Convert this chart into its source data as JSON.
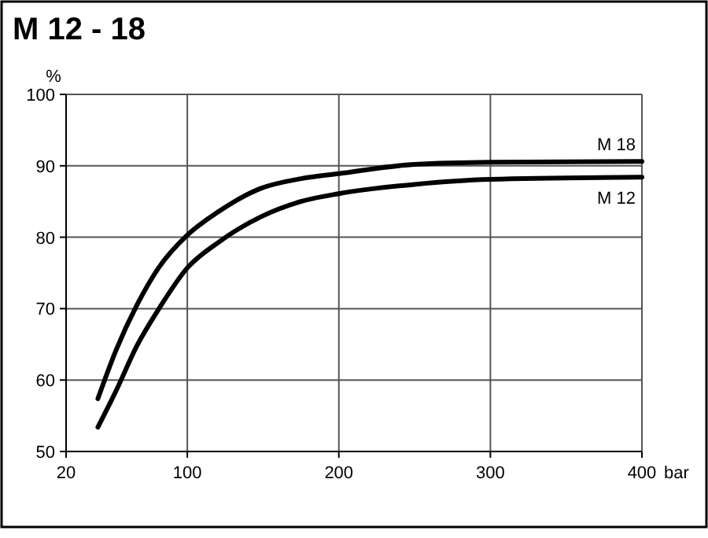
{
  "chart_data": {
    "type": "line",
    "title": "M 12 - 18",
    "ylabel": "%",
    "xlabel": "bar",
    "xlim": [
      20,
      400
    ],
    "xticks": [
      20,
      100,
      200,
      300,
      400
    ],
    "ylim": [
      50,
      100
    ],
    "yticks": [
      50,
      60,
      70,
      80,
      90,
      100
    ],
    "grid": true,
    "marker": "none",
    "line_style": "solid",
    "series": [
      {
        "name": "M 18",
        "color": "#000000",
        "x": [
          41,
          53,
          67,
          81,
          100,
          120,
          148,
          175,
          200,
          250,
          300,
          400
        ],
        "values": [
          57.4,
          64.2,
          70.6,
          75.7,
          80.3,
          83.5,
          86.8,
          88.2,
          88.9,
          90.2,
          90.5,
          90.6
        ]
      },
      {
        "name": "M 12",
        "color": "#000000",
        "x": [
          41,
          53,
          67,
          81,
          100,
          120,
          148,
          175,
          200,
          250,
          300,
          400
        ],
        "values": [
          53.4,
          58.5,
          64.9,
          69.9,
          75.7,
          79.2,
          82.8,
          85,
          86.1,
          87.4,
          88.1,
          88.4
        ]
      }
    ]
  }
}
